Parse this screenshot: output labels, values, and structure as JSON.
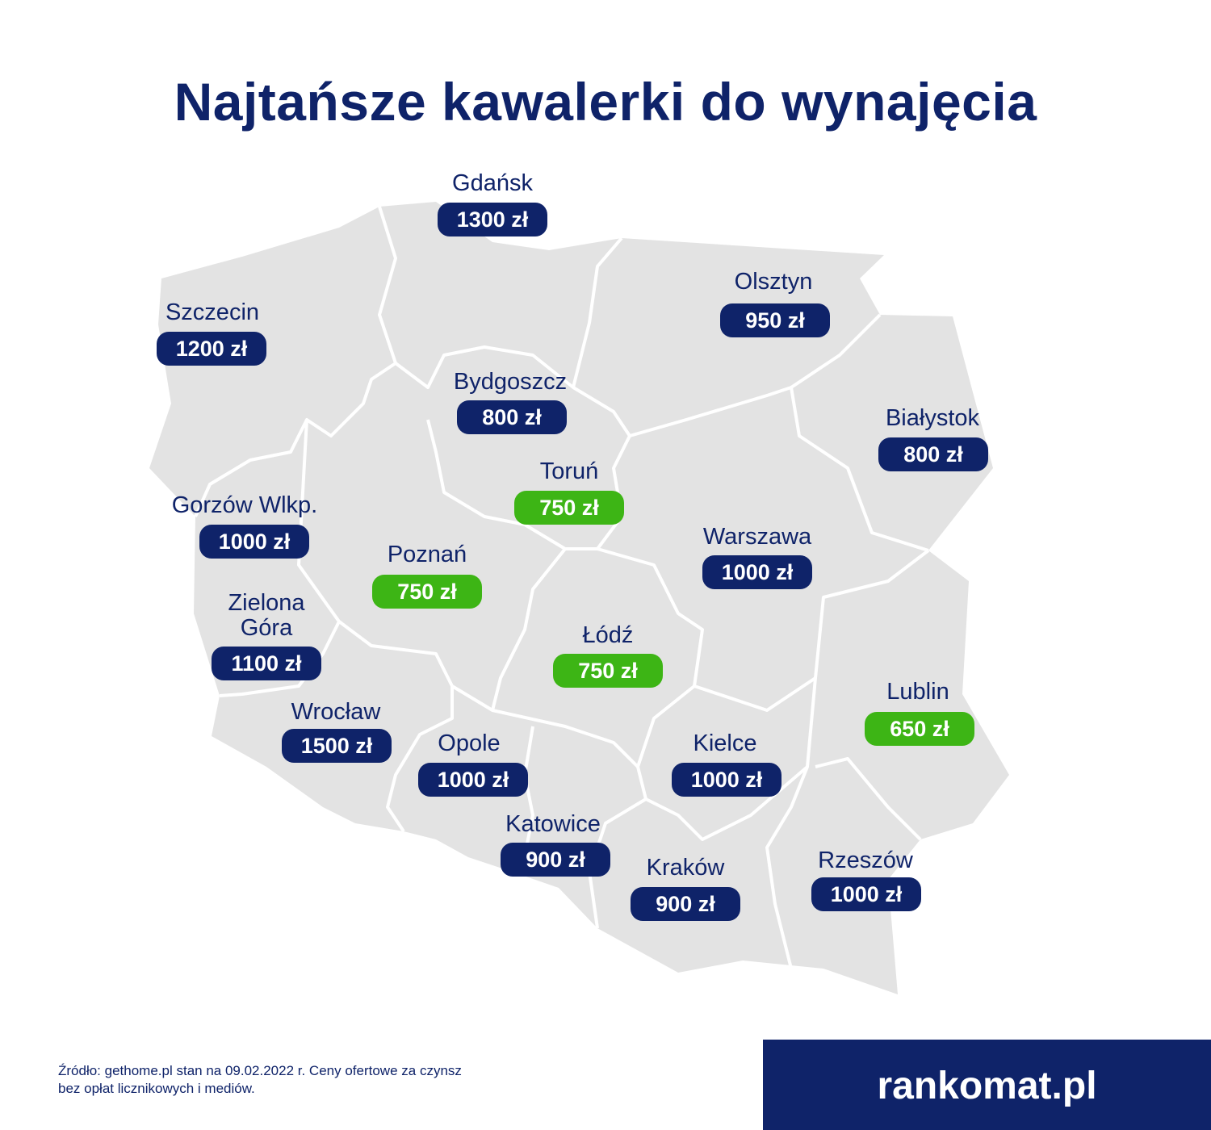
{
  "title": "Najtańsze kawalerki do wynajęcia",
  "cities": [
    {
      "name": "Gdańsk",
      "price": "1300 zł",
      "color": "#0f2369"
    },
    {
      "name": "Olsztyn",
      "price": "950 zł",
      "color": "#0f2369"
    },
    {
      "name": "Szczecin",
      "price": "1200 zł",
      "color": "#0f2369"
    },
    {
      "name": "Bydgoszcz",
      "price": "800 zł",
      "color": "#0f2369"
    },
    {
      "name": "Białystok",
      "price": "800 zł",
      "color": "#0f2369"
    },
    {
      "name": "Toruń",
      "price": "750 zł",
      "color": "#3db515"
    },
    {
      "name": "Gorzów Wlkp.",
      "price": "1000 zł",
      "color": "#0f2369"
    },
    {
      "name": "Warszawa",
      "price": "1000 zł",
      "color": "#0f2369"
    },
    {
      "name": "Poznań",
      "price": "750 zł",
      "color": "#3db515"
    },
    {
      "name": "Zielona Góra",
      "price": "1100 zł",
      "color": "#0f2369"
    },
    {
      "name": "Łódź",
      "price": "750 zł",
      "color": "#3db515"
    },
    {
      "name": "Lublin",
      "price": "650 zł",
      "color": "#3db515"
    },
    {
      "name": "Wrocław",
      "price": "1500 zł",
      "color": "#0f2369"
    },
    {
      "name": "Opole",
      "price": "1000 zł",
      "color": "#0f2369"
    },
    {
      "name": "Kielce",
      "price": "1000 zł",
      "color": "#0f2369"
    },
    {
      "name": "Katowice",
      "price": "900 zł",
      "color": "#0f2369"
    },
    {
      "name": "Kraków",
      "price": "900 zł",
      "color": "#0f2369"
    },
    {
      "name": "Rzeszów",
      "price": "1000 zł",
      "color": "#0f2369"
    }
  ],
  "source": [
    "Źródło: gethome.pl stan na 09.02.2022 r. Ceny ofertowe za czynsz",
    "bez opłat licznikowych i mediów."
  ],
  "logo": "rankomat.pl"
}
